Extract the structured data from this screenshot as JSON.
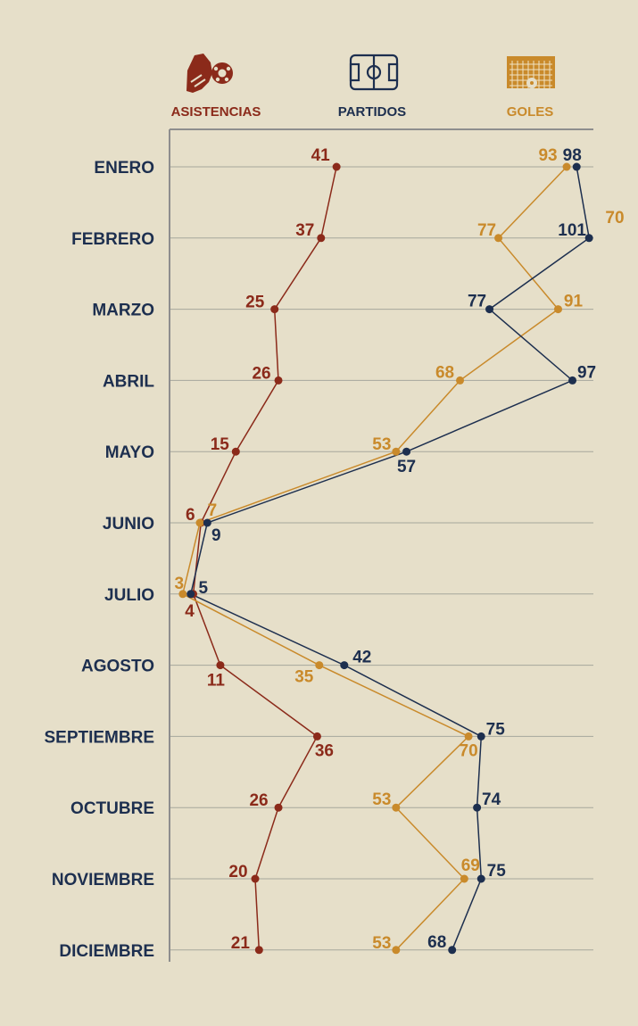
{
  "chart_data": {
    "type": "line",
    "orientation": "horizontal",
    "categories": [
      "ENERO",
      "FEBRERO",
      "MARZO",
      "ABRIL",
      "MAYO",
      "JUNIO",
      "JULIO",
      "AGOSTO",
      "SEPTIEMBRE",
      "OCTUBRE",
      "NOVIEMBRE",
      "DICIEMBRE"
    ],
    "series": [
      {
        "name": "ASISTENCIAS",
        "color": "#8b2a1a",
        "icon": "soccer-cleat-icon",
        "values": [
          41,
          37,
          25,
          26,
          15,
          6,
          4,
          11,
          36,
          26,
          20,
          21
        ]
      },
      {
        "name": "PARTIDOS",
        "color": "#1d2f4f",
        "icon": "soccer-field-icon",
        "values": [
          98,
          101,
          77,
          97,
          57,
          9,
          5,
          42,
          75,
          74,
          75,
          68
        ]
      },
      {
        "name": "GOLES",
        "color": "#c98a2b",
        "icon": "soccer-goal-icon",
        "values": [
          93,
          77,
          91,
          68,
          53,
          7,
          3,
          35,
          70,
          53,
          69,
          53
        ]
      }
    ],
    "extra_labels": [
      "70"
    ],
    "legend_position": "top",
    "grid": true
  }
}
